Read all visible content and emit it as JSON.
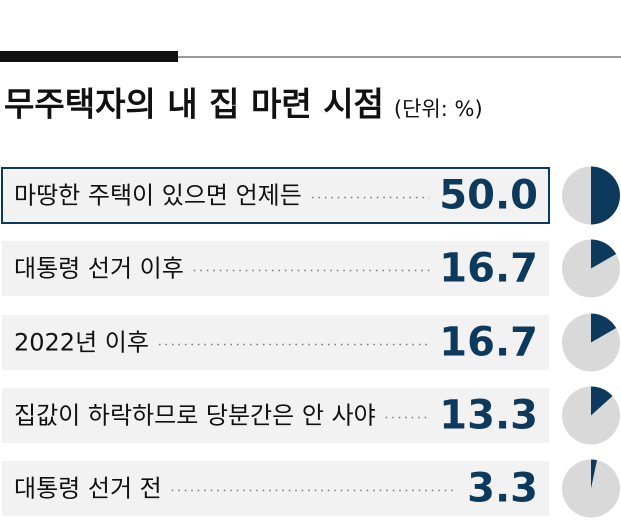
{
  "chart_data": {
    "type": "pie-list",
    "title": "무주택자의 내 집 마련 시점",
    "subtitle": "(단위: %)",
    "categories": [
      "마땅한 주택이 있으면 언제든",
      "대통령 선거 이후",
      "2022년 이후",
      "집값이 하락하므로 당분간은 안 사야",
      "대통령 선거 전"
    ],
    "values": [
      50,
      16.7,
      16.7,
      13.3,
      3.3
    ],
    "value_labels": [
      "50.0",
      "16.7",
      "16.7",
      "13.3",
      "3.3"
    ],
    "color": "#0d3a5c"
  }
}
